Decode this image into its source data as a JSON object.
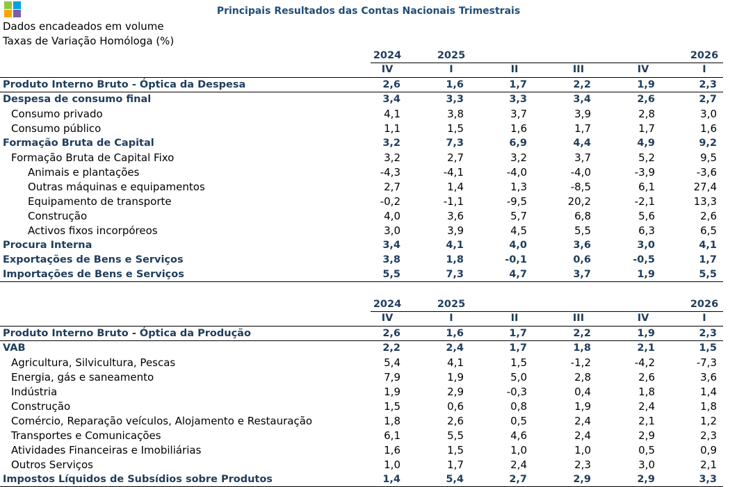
{
  "header": {
    "title": "Principais Resultados das Contas Nacionais Trimestrais",
    "subtitle_lines": [
      "Dados encadeados em volume",
      "Taxas de Variação Homóloga (%)"
    ]
  },
  "tables": [
    {
      "years": [
        "2024",
        "2025",
        "2026"
      ],
      "quarters": [
        "IV",
        "I",
        "II",
        "III",
        "IV",
        "I"
      ],
      "rows": [
        {
          "label": "Produto Interno Bruto - Óptica da Despesa",
          "bold": true,
          "level": 0,
          "values": [
            "2,6",
            "1,6",
            "1,7",
            "2,2",
            "1,9",
            "2,3"
          ]
        },
        {
          "label": "Despesa de consumo final",
          "bold": true,
          "level": 0,
          "values": [
            "3,4",
            "3,3",
            "3,3",
            "3,4",
            "2,6",
            "2,7"
          ]
        },
        {
          "label": "Consumo privado",
          "bold": false,
          "level": 1,
          "values": [
            "4,1",
            "3,8",
            "3,7",
            "3,9",
            "2,8",
            "3,0"
          ]
        },
        {
          "label": "Consumo público",
          "bold": false,
          "level": 1,
          "values": [
            "1,1",
            "1,5",
            "1,6",
            "1,7",
            "1,7",
            "1,6"
          ]
        },
        {
          "label": "Formação Bruta de Capital",
          "bold": true,
          "level": 0,
          "values": [
            "3,2",
            "7,3",
            "6,9",
            "4,4",
            "4,9",
            "9,2"
          ]
        },
        {
          "label": "Formação Bruta de Capital Fixo",
          "bold": false,
          "level": 1,
          "values": [
            "3,2",
            "2,7",
            "3,2",
            "3,7",
            "5,2",
            "9,5"
          ]
        },
        {
          "label": "Animais e plantações",
          "bold": false,
          "level": 2,
          "values": [
            "-4,3",
            "-4,1",
            "-4,0",
            "-4,0",
            "-3,9",
            "-3,6"
          ]
        },
        {
          "label": "Outras máquinas e equipamentos",
          "bold": false,
          "level": 2,
          "values": [
            "2,7",
            "1,4",
            "1,3",
            "-8,5",
            "6,1",
            "27,4"
          ]
        },
        {
          "label": "Equipamento de transporte",
          "bold": false,
          "level": 2,
          "values": [
            "-0,2",
            "-1,1",
            "-9,5",
            "20,2",
            "-2,1",
            "13,3"
          ]
        },
        {
          "label": "Construção",
          "bold": false,
          "level": 2,
          "values": [
            "4,0",
            "3,6",
            "5,7",
            "6,8",
            "5,6",
            "2,6"
          ]
        },
        {
          "label": "Activos fixos incorpóreos",
          "bold": false,
          "level": 2,
          "values": [
            "3,0",
            "3,9",
            "4,5",
            "5,5",
            "6,3",
            "6,5"
          ]
        },
        {
          "label": "Procura Interna",
          "bold": true,
          "level": 0,
          "values": [
            "3,4",
            "4,1",
            "4,0",
            "3,6",
            "3,0",
            "4,1"
          ]
        },
        {
          "label": "Exportações de Bens e Serviços",
          "bold": true,
          "level": 0,
          "values": [
            "3,8",
            "1,8",
            "-0,1",
            "0,6",
            "-0,5",
            "1,7"
          ]
        },
        {
          "label": "Importações de Bens e Serviços",
          "bold": true,
          "level": 0,
          "values": [
            "5,5",
            "7,3",
            "4,7",
            "3,7",
            "1,9",
            "5,5"
          ]
        }
      ]
    },
    {
      "years": [
        "2024",
        "2025",
        "2026"
      ],
      "quarters": [
        "IV",
        "I",
        "II",
        "III",
        "IV",
        "I"
      ],
      "rows": [
        {
          "label": "Produto Interno Bruto - Óptica da Produção",
          "bold": true,
          "level": 0,
          "values": [
            "2,6",
            "1,6",
            "1,7",
            "2,2",
            "1,9",
            "2,3"
          ]
        },
        {
          "label": "VAB",
          "bold": true,
          "level": 0,
          "values": [
            "2,2",
            "2,4",
            "1,7",
            "1,8",
            "2,1",
            "1,5"
          ]
        },
        {
          "label": "Agricultura, Silvicultura, Pescas",
          "bold": false,
          "level": 1,
          "values": [
            "5,4",
            "4,1",
            "1,5",
            "-1,2",
            "-4,2",
            "-7,3"
          ]
        },
        {
          "label": "Energia, gás e saneamento",
          "bold": false,
          "level": 1,
          "values": [
            "7,9",
            "1,9",
            "5,0",
            "2,8",
            "2,6",
            "3,6"
          ]
        },
        {
          "label": "Indústria",
          "bold": false,
          "level": 1,
          "values": [
            "1,9",
            "2,9",
            "-0,3",
            "0,4",
            "1,8",
            "1,4"
          ]
        },
        {
          "label": "Construção",
          "bold": false,
          "level": 1,
          "values": [
            "1,5",
            "0,6",
            "0,8",
            "1,9",
            "2,4",
            "1,8"
          ]
        },
        {
          "label": "Comércio, Reparação veículos, Alojamento e Restauração",
          "bold": false,
          "level": 1,
          "values": [
            "1,8",
            "2,6",
            "0,5",
            "2,4",
            "2,1",
            "1,2"
          ]
        },
        {
          "label": "Transportes e Comunicações",
          "bold": false,
          "level": 1,
          "values": [
            "6,1",
            "5,5",
            "4,6",
            "2,4",
            "2,9",
            "2,3"
          ]
        },
        {
          "label": "Atividades Financeiras e Imobiliárias",
          "bold": false,
          "level": 1,
          "values": [
            "1,6",
            "1,5",
            "1,0",
            "1,0",
            "0,5",
            "0,9"
          ]
        },
        {
          "label": "Outros Serviços",
          "bold": false,
          "level": 1,
          "values": [
            "1,0",
            "1,7",
            "2,4",
            "2,3",
            "3,0",
            "2,1"
          ]
        },
        {
          "label": "Impostos Líquidos de Subsídios sobre Produtos",
          "bold": true,
          "level": 0,
          "values": [
            "1,4",
            "5,4",
            "2,7",
            "2,9",
            "2,9",
            "3,3"
          ]
        }
      ]
    }
  ]
}
